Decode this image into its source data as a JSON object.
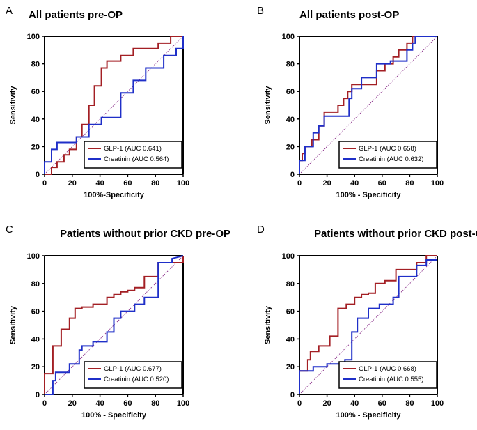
{
  "colors": {
    "glp1": "#a31f24",
    "creatinin": "#1f2fc8",
    "diagonal": "#8a2f8a",
    "axis": "#000000"
  },
  "chart_data": [
    {
      "type": "line",
      "panel_label": "A",
      "title": "All patients pre-OP",
      "xlabel": "100%-Specificity",
      "ylabel": "Sensitivity",
      "xlim": [
        0,
        100
      ],
      "ylim": [
        0,
        100
      ],
      "xticks": [
        "0",
        "20",
        "40",
        "60",
        "80",
        "100"
      ],
      "yticks": [
        "0",
        "20",
        "40",
        "60",
        "80",
        "100"
      ],
      "grid": false,
      "legend_position": "bottom-right",
      "reference_line": "diagonal",
      "series": [
        {
          "name": "GLP-1 (AUC 0.641)",
          "color": "#a31f24",
          "x": [
            0,
            5,
            5,
            9,
            9,
            14,
            14,
            18,
            18,
            23,
            23,
            27,
            27,
            32,
            32,
            36,
            36,
            41,
            41,
            45,
            45,
            55,
            55,
            64,
            64,
            82,
            82,
            91,
            91,
            100,
            100
          ],
          "y": [
            0,
            0,
            5,
            5,
            9,
            9,
            14,
            14,
            18,
            18,
            27,
            27,
            36,
            36,
            50,
            50,
            64,
            64,
            77,
            77,
            82,
            82,
            86,
            86,
            91,
            91,
            95,
            95,
            100,
            100,
            100
          ]
        },
        {
          "name": "Creatinin (AUC 0.564)",
          "color": "#1f2fc8",
          "x": [
            0,
            0,
            5,
            5,
            9,
            9,
            23,
            23,
            32,
            32,
            41,
            41,
            55,
            55,
            64,
            64,
            73,
            73,
            86,
            86,
            95,
            95,
            100,
            100
          ],
          "y": [
            0,
            9,
            9,
            18,
            18,
            23,
            23,
            27,
            27,
            36,
            36,
            41,
            41,
            59,
            59,
            68,
            68,
            77,
            77,
            86,
            86,
            91,
            91,
            100
          ]
        }
      ]
    },
    {
      "type": "line",
      "panel_label": "B",
      "title": "All patients post-OP",
      "xlabel": "100% - Specificity",
      "ylabel": "Sensitivity",
      "xlim": [
        0,
        100
      ],
      "ylim": [
        0,
        100
      ],
      "xticks": [
        "0",
        "20",
        "40",
        "60",
        "80",
        "100"
      ],
      "yticks": [
        "0",
        "20",
        "40",
        "60",
        "80",
        "100"
      ],
      "grid": false,
      "legend_position": "bottom-right",
      "reference_line": "diagonal",
      "series": [
        {
          "name": "GLP-1 (AUC 0.658)",
          "color": "#a31f24",
          "x": [
            0,
            0,
            2,
            2,
            4,
            4,
            9,
            9,
            14,
            14,
            18,
            18,
            28,
            28,
            32,
            32,
            35,
            35,
            38,
            38,
            42,
            42,
            56,
            56,
            62,
            62,
            68,
            68,
            72,
            72,
            78,
            78,
            82,
            82,
            100
          ],
          "y": [
            0,
            10,
            10,
            15,
            15,
            20,
            20,
            25,
            25,
            35,
            35,
            45,
            45,
            50,
            50,
            55,
            55,
            60,
            60,
            65,
            65,
            65,
            65,
            75,
            75,
            80,
            80,
            85,
            85,
            90,
            90,
            95,
            95,
            100,
            100
          ]
        },
        {
          "name": "Creatinin (AUC 0.632)",
          "color": "#1f2fc8",
          "x": [
            0,
            0,
            4,
            4,
            10,
            10,
            14,
            14,
            18,
            18,
            36,
            36,
            38,
            38,
            45,
            45,
            56,
            56,
            66,
            66,
            78,
            78,
            82,
            82,
            84,
            84,
            100
          ],
          "y": [
            0,
            10,
            10,
            20,
            20,
            30,
            30,
            35,
            35,
            42,
            42,
            55,
            55,
            62,
            62,
            70,
            70,
            80,
            80,
            82,
            82,
            90,
            90,
            95,
            95,
            100,
            100
          ]
        }
      ]
    },
    {
      "type": "line",
      "panel_label": "C",
      "title": "Patients without prior CKD pre-OP",
      "xlabel": "100% - Specificity",
      "ylabel": "Sensitivity",
      "xlim": [
        0,
        100
      ],
      "ylim": [
        0,
        100
      ],
      "xticks": [
        "0",
        "20",
        "40",
        "60",
        "80",
        "100"
      ],
      "yticks": [
        "0",
        "20",
        "40",
        "60",
        "80",
        "100"
      ],
      "grid": false,
      "legend_position": "bottom-right",
      "reference_line": "diagonal",
      "series": [
        {
          "name": "GLP-1 (AUC 0.677)",
          "color": "#a31f24",
          "x": [
            0,
            0,
            6,
            6,
            12,
            12,
            18,
            18,
            22,
            22,
            27,
            27,
            35,
            35,
            45,
            45,
            50,
            50,
            55,
            55,
            60,
            60,
            65,
            65,
            72,
            72,
            82,
            82,
            100,
            100
          ],
          "y": [
            0,
            15,
            15,
            35,
            35,
            47,
            47,
            55,
            55,
            62,
            62,
            63,
            63,
            65,
            65,
            70,
            70,
            72,
            72,
            74,
            74,
            75,
            75,
            77,
            77,
            85,
            85,
            95,
            95,
            100
          ]
        },
        {
          "name": "Creatinin (AUC 0.520)",
          "color": "#1f2fc8",
          "x": [
            0,
            6,
            6,
            8,
            8,
            18,
            18,
            25,
            25,
            27,
            27,
            35,
            35,
            45,
            45,
            50,
            50,
            55,
            55,
            65,
            65,
            72,
            72,
            82,
            82,
            92,
            92,
            100
          ],
          "y": [
            0,
            0,
            10,
            10,
            16,
            16,
            22,
            22,
            32,
            32,
            35,
            35,
            38,
            38,
            45,
            45,
            55,
            55,
            60,
            60,
            65,
            65,
            70,
            70,
            95,
            95,
            98,
            100
          ]
        }
      ]
    },
    {
      "type": "line",
      "panel_label": "D",
      "title": "Patients without prior CKD post-OP",
      "xlabel": "100% - Specificity",
      "ylabel": "Sensitivity",
      "xlim": [
        0,
        100
      ],
      "ylim": [
        0,
        100
      ],
      "xticks": [
        "0",
        "20",
        "40",
        "60",
        "80",
        "100"
      ],
      "yticks": [
        "0",
        "20",
        "40",
        "60",
        "80",
        "100"
      ],
      "grid": false,
      "legend_position": "bottom-right",
      "reference_line": "diagonal",
      "series": [
        {
          "name": "GLP-1 (AUC 0.668)",
          "color": "#a31f24",
          "x": [
            0,
            0,
            6,
            6,
            8,
            8,
            14,
            14,
            22,
            22,
            28,
            28,
            34,
            34,
            40,
            40,
            45,
            45,
            50,
            50,
            55,
            55,
            62,
            62,
            70,
            70,
            85,
            85,
            92,
            92,
            100
          ],
          "y": [
            0,
            17,
            17,
            25,
            25,
            31,
            31,
            35,
            35,
            42,
            42,
            62,
            62,
            65,
            65,
            70,
            70,
            72,
            72,
            73,
            73,
            80,
            80,
            82,
            82,
            90,
            90,
            95,
            95,
            100,
            100
          ]
        },
        {
          "name": "Creatinin (AUC 0.555)",
          "color": "#1f2fc8",
          "x": [
            0,
            0,
            10,
            10,
            20,
            20,
            33,
            33,
            38,
            38,
            42,
            42,
            50,
            50,
            58,
            58,
            68,
            68,
            72,
            72,
            85,
            85,
            92,
            92,
            100
          ],
          "y": [
            0,
            17,
            17,
            20,
            20,
            22,
            22,
            25,
            25,
            45,
            45,
            55,
            55,
            62,
            62,
            65,
            65,
            70,
            70,
            85,
            85,
            93,
            93,
            97,
            97
          ]
        }
      ]
    }
  ]
}
